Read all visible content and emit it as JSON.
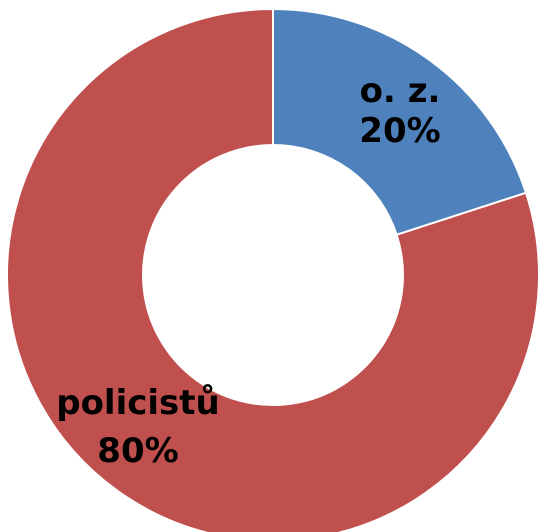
{
  "chart_data": {
    "type": "pie",
    "variant": "donut",
    "title": "",
    "legend": "none",
    "slices": [
      {
        "label": "o. z.",
        "value": 20,
        "value_label": "20%",
        "color": "#4f81bd"
      },
      {
        "label": "policistů",
        "value": 80,
        "value_label": "80%",
        "color": "#c0504d"
      }
    ]
  }
}
